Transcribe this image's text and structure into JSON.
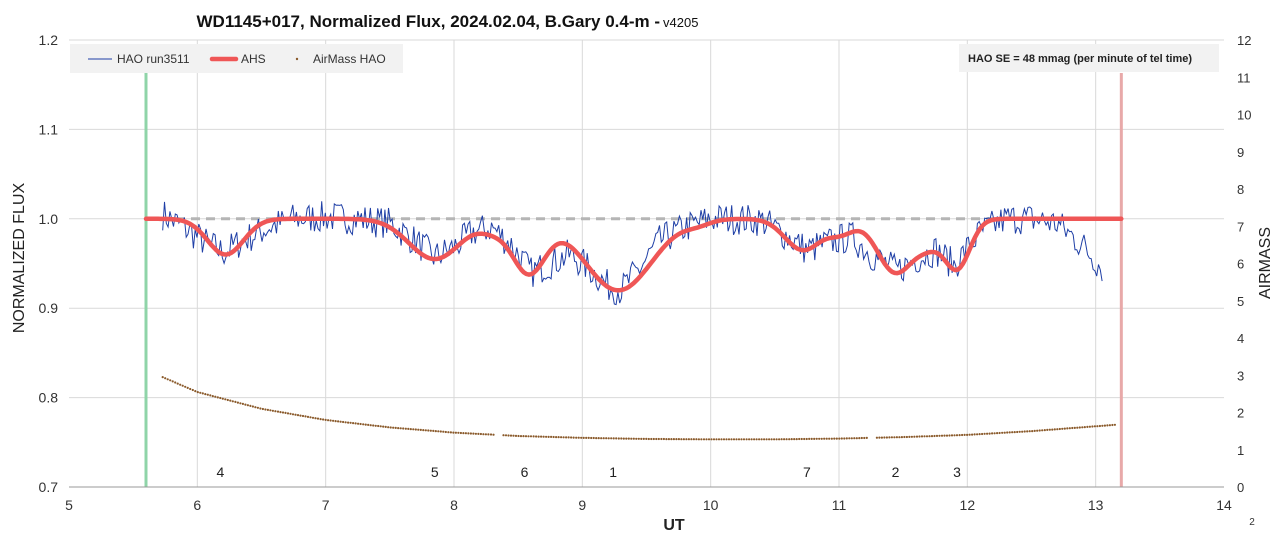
{
  "chart_data": {
    "type": "line",
    "title": "WD1145+017, Normalized Flux, 2024.02.04, B.Gary 0.4-m - ",
    "title_version": "v4205",
    "xlabel": "UT",
    "ylabel": "NORMALIZED FLUX",
    "y2label": "AIRMASS",
    "xlim": [
      5,
      14
    ],
    "ylim": [
      0.7,
      1.2
    ],
    "y2lim": [
      0,
      12
    ],
    "xticks": [
      5,
      6,
      7,
      8,
      9,
      10,
      11,
      12,
      13,
      14
    ],
    "yticks": [
      "0.7",
      "0.8",
      "0.9",
      "1.0",
      "1.1",
      "1.2"
    ],
    "y2ticks": [
      0,
      1,
      2,
      3,
      4,
      5,
      6,
      7,
      8,
      9,
      10,
      11,
      12
    ],
    "grid": true,
    "legend_position": "top-left",
    "note": "HAO SE = 48 mmag (per minute of tel time)",
    "corner_label": "2",
    "reference_level": 1.0,
    "vlines": [
      {
        "x": 5.6,
        "color": "#8fd4a8"
      },
      {
        "x": 13.2,
        "color": "#e8a9a9"
      }
    ],
    "dip_markers": [
      {
        "label": "4",
        "x": 6.18
      },
      {
        "label": "5",
        "x": 7.85
      },
      {
        "label": "6",
        "x": 8.55
      },
      {
        "label": "1",
        "x": 9.24
      },
      {
        "label": "7",
        "x": 10.75
      },
      {
        "label": "2",
        "x": 11.44
      },
      {
        "label": "3",
        "x": 11.92
      }
    ],
    "ahs_dips": [
      {
        "center": 6.22,
        "depth": 0.04,
        "width": 0.14
      },
      {
        "center": 7.85,
        "depth": 0.045,
        "width": 0.2
      },
      {
        "center": 8.3,
        "depth": 0.01,
        "width": 0.1
      },
      {
        "center": 8.58,
        "depth": 0.06,
        "width": 0.13
      },
      {
        "center": 9.28,
        "depth": 0.08,
        "width": 0.26
      },
      {
        "center": 9.9,
        "depth": 0.005,
        "width": 0.1
      },
      {
        "center": 10.72,
        "depth": 0.035,
        "width": 0.14
      },
      {
        "center": 11.02,
        "depth": 0.015,
        "width": 0.1
      },
      {
        "center": 11.44,
        "depth": 0.06,
        "width": 0.14
      },
      {
        "center": 11.92,
        "depth": 0.055,
        "width": 0.1
      },
      {
        "center": 11.7,
        "depth": 0.022,
        "width": 0.1
      }
    ],
    "series": [
      {
        "name": "HAO run3511",
        "color": "#1f3fa6",
        "x": [
          5.73,
          5.9,
          6.05,
          6.2,
          6.35,
          6.55,
          6.75,
          7.0,
          7.25,
          7.5,
          7.7,
          7.85,
          8.0,
          8.15,
          8.3,
          8.45,
          8.6,
          8.75,
          8.9,
          9.05,
          9.2,
          9.3,
          9.45,
          9.6,
          9.8,
          10.0,
          10.2,
          10.4,
          10.55,
          10.75,
          10.95,
          11.1,
          11.25,
          11.45,
          11.6,
          11.75,
          11.9,
          12.1,
          12.3,
          12.5,
          12.7,
          12.9,
          13.05
        ],
        "values": [
          1.005,
          0.99,
          0.975,
          0.962,
          0.975,
          0.99,
          1.0,
          1.002,
          1.0,
          0.995,
          0.975,
          0.957,
          0.968,
          0.985,
          0.99,
          0.97,
          0.94,
          0.95,
          0.96,
          0.945,
          0.925,
          0.92,
          0.945,
          0.975,
          0.99,
          1.0,
          1.0,
          0.998,
          0.985,
          0.965,
          0.975,
          0.98,
          0.96,
          0.942,
          0.955,
          0.965,
          0.948,
          0.985,
          1.0,
          1.0,
          0.995,
          0.97,
          0.945
        ]
      },
      {
        "name": "AHS",
        "color": "#ef5656",
        "x_range": [
          5.6,
          13.2
        ]
      },
      {
        "name": "AirMass HAO",
        "color": "#8a5a2b",
        "x": [
          5.73,
          6.0,
          6.5,
          7.0,
          7.5,
          8.0,
          8.5,
          9.0,
          9.5,
          10.0,
          10.5,
          11.0,
          11.5,
          12.0,
          12.5,
          13.0,
          13.15
        ],
        "values": [
          2.95,
          2.55,
          2.1,
          1.8,
          1.6,
          1.46,
          1.37,
          1.32,
          1.29,
          1.28,
          1.28,
          1.3,
          1.34,
          1.4,
          1.5,
          1.63,
          1.67
        ]
      }
    ]
  }
}
